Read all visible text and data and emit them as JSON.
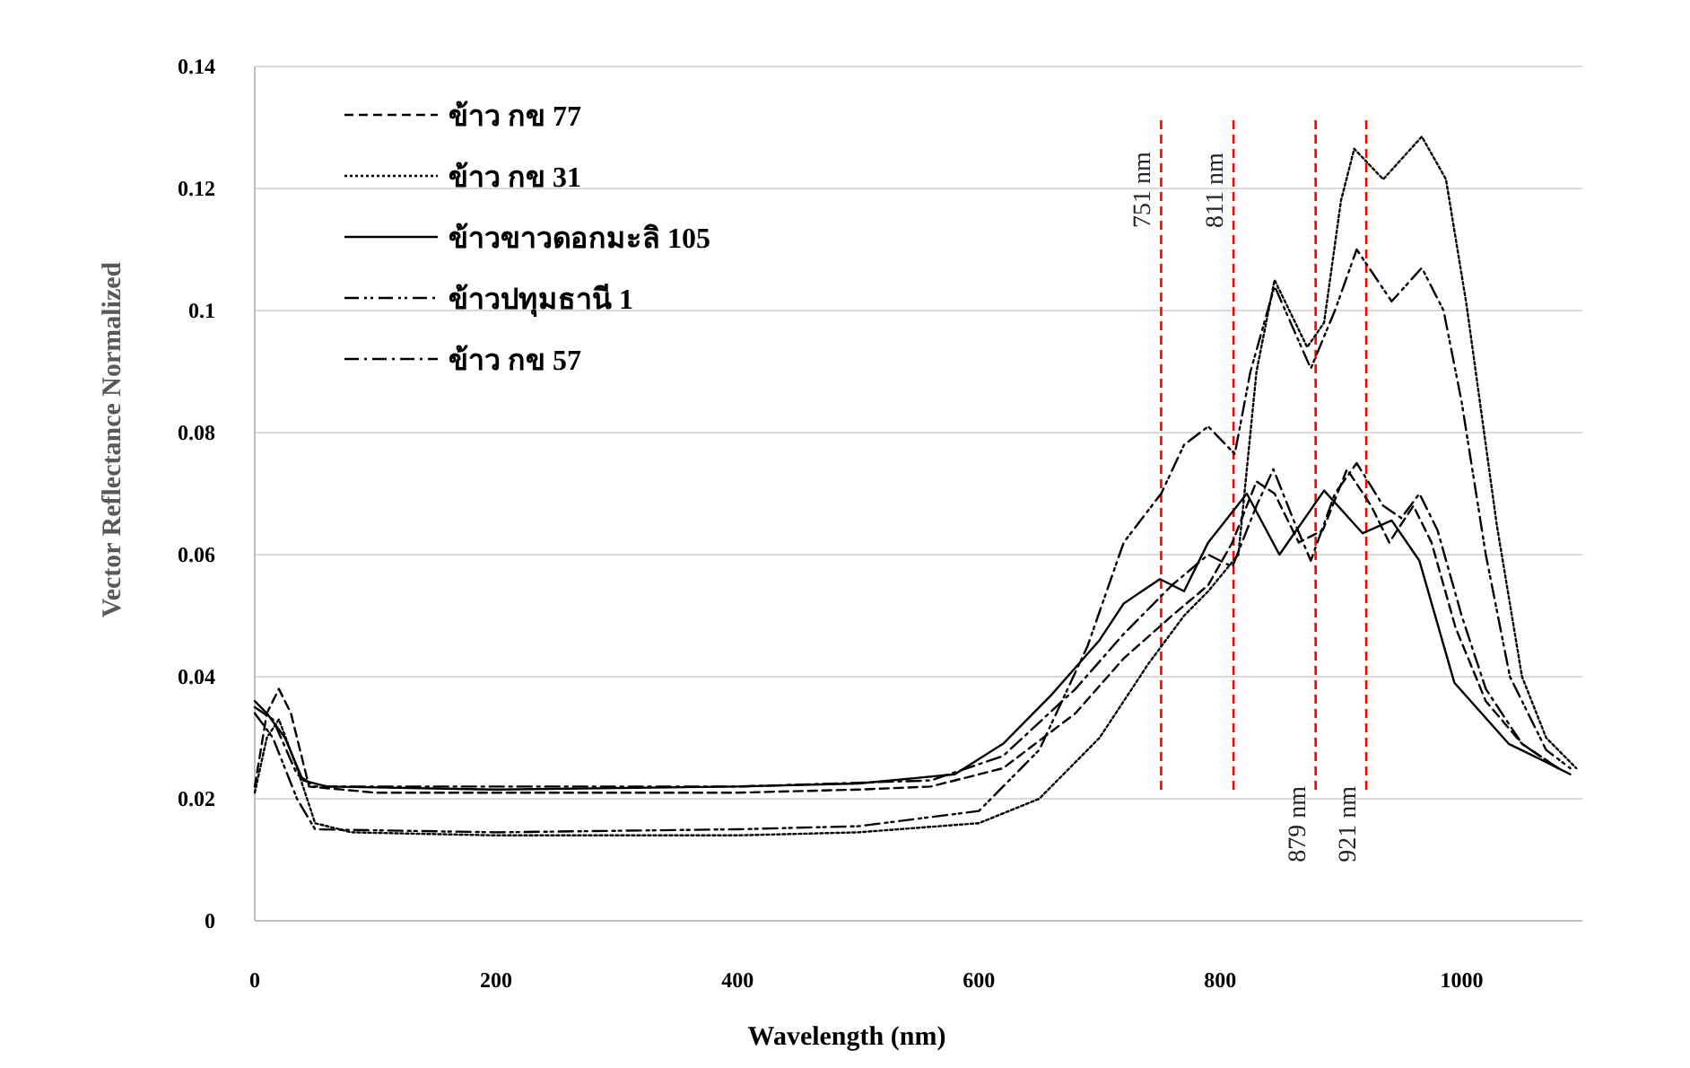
{
  "chart_data": {
    "type": "line",
    "xlabel": "Wavelength (nm)",
    "ylabel": "Vector Reflectance Normalized",
    "xlim": [
      0,
      1100
    ],
    "xticks": [
      0,
      200,
      400,
      600,
      800,
      1000
    ],
    "ylim": [
      0,
      0.14
    ],
    "yticks": [
      0,
      0.02,
      0.04,
      0.06,
      0.08,
      0.1,
      0.12,
      0.14
    ],
    "grid": "y",
    "legend": "top left",
    "marker": "none",
    "ref_lines": [
      {
        "axis": "x",
        "value": 751,
        "label": "751 nm",
        "color": "#ff0000",
        "line_style": "dashed"
      },
      {
        "axis": "x",
        "value": 811,
        "label": "811 nm",
        "color": "#ff0000",
        "line_style": "dashed"
      },
      {
        "axis": "x",
        "value": 879,
        "label": "879 nm",
        "color": "#ff0000",
        "line_style": "dashed"
      },
      {
        "axis": "x",
        "value": 921,
        "label": "921 nm",
        "color": "#ff0000",
        "line_style": "dashed"
      }
    ],
    "series": [
      {
        "name": "ข้าว กข 77",
        "color": "#000000",
        "line_style": "dashed",
        "x": [
          0,
          10,
          20,
          30,
          45,
          100,
          200,
          300,
          400,
          500,
          560,
          620,
          680,
          720,
          760,
          790,
          810,
          830,
          845,
          865,
          885,
          905,
          925,
          940,
          960,
          975,
          995,
          1020,
          1050,
          1080
        ],
        "values": [
          0.022,
          0.034,
          0.038,
          0.034,
          0.022,
          0.021,
          0.021,
          0.021,
          0.021,
          0.0215,
          0.022,
          0.025,
          0.034,
          0.043,
          0.05,
          0.055,
          0.062,
          0.072,
          0.07,
          0.062,
          0.064,
          0.074,
          0.068,
          0.062,
          0.068,
          0.062,
          0.048,
          0.036,
          0.029,
          0.025
        ]
      },
      {
        "name": "ข้าว กข 31",
        "color": "#000000",
        "line_style": "dotted",
        "x": [
          0,
          10,
          20,
          35,
          50,
          80,
          200,
          300,
          400,
          500,
          600,
          650,
          700,
          740,
          770,
          790,
          815,
          830,
          845,
          872,
          886,
          900,
          911,
          935,
          967,
          987,
          1004,
          1029,
          1050,
          1070,
          1095
        ],
        "values": [
          0.021,
          0.03,
          0.033,
          0.025,
          0.016,
          0.0145,
          0.014,
          0.014,
          0.014,
          0.0145,
          0.016,
          0.02,
          0.03,
          0.042,
          0.05,
          0.054,
          0.06,
          0.09,
          0.105,
          0.094,
          0.098,
          0.118,
          0.1265,
          0.1215,
          0.1285,
          0.1215,
          0.101,
          0.065,
          0.04,
          0.03,
          0.025
        ]
      },
      {
        "name": "ข้าวขาวดอกมะลิ 105",
        "color": "#000000",
        "line_style": "solid",
        "x": [
          0,
          10,
          25,
          40,
          60,
          200,
          400,
          500,
          580,
          620,
          660,
          700,
          720,
          750,
          770,
          790,
          822,
          849,
          886,
          918,
          942,
          965,
          994,
          1039,
          1070,
          1090
        ],
        "values": [
          0.036,
          0.034,
          0.03,
          0.023,
          0.022,
          0.0215,
          0.022,
          0.0225,
          0.024,
          0.029,
          0.037,
          0.046,
          0.052,
          0.056,
          0.054,
          0.062,
          0.07,
          0.06,
          0.0705,
          0.0635,
          0.0656,
          0.059,
          0.039,
          0.029,
          0.026,
          0.024
        ]
      },
      {
        "name": "ข้าวปทุมธานี 1",
        "color": "#000000",
        "line_style": "dashdotdot",
        "x": [
          0,
          15,
          35,
          50,
          200,
          400,
          500,
          600,
          650,
          690,
          720,
          751,
          770,
          790,
          812,
          825,
          845,
          875,
          895,
          913,
          942,
          967,
          985,
          1000,
          1020,
          1040,
          1070,
          1090
        ],
        "values": [
          0.034,
          0.03,
          0.02,
          0.015,
          0.0145,
          0.015,
          0.0155,
          0.018,
          0.028,
          0.045,
          0.062,
          0.07,
          0.078,
          0.081,
          0.0765,
          0.09,
          0.104,
          0.0905,
          0.1,
          0.11,
          0.1015,
          0.107,
          0.1,
          0.085,
          0.06,
          0.04,
          0.028,
          0.025
        ]
      },
      {
        "name": "ข้าว กข 57",
        "color": "#000000",
        "line_style": "dashdot",
        "x": [
          0,
          15,
          35,
          50,
          200,
          400,
          560,
          620,
          680,
          720,
          760,
          790,
          810,
          830,
          844,
          860,
          875,
          895,
          913,
          935,
          950,
          965,
          980,
          1000,
          1020,
          1050,
          1080
        ],
        "values": [
          0.035,
          0.033,
          0.024,
          0.022,
          0.022,
          0.022,
          0.023,
          0.027,
          0.038,
          0.047,
          0.055,
          0.06,
          0.058,
          0.068,
          0.074,
          0.066,
          0.059,
          0.07,
          0.075,
          0.068,
          0.066,
          0.07,
          0.064,
          0.05,
          0.038,
          0.029,
          0.025
        ]
      }
    ]
  }
}
